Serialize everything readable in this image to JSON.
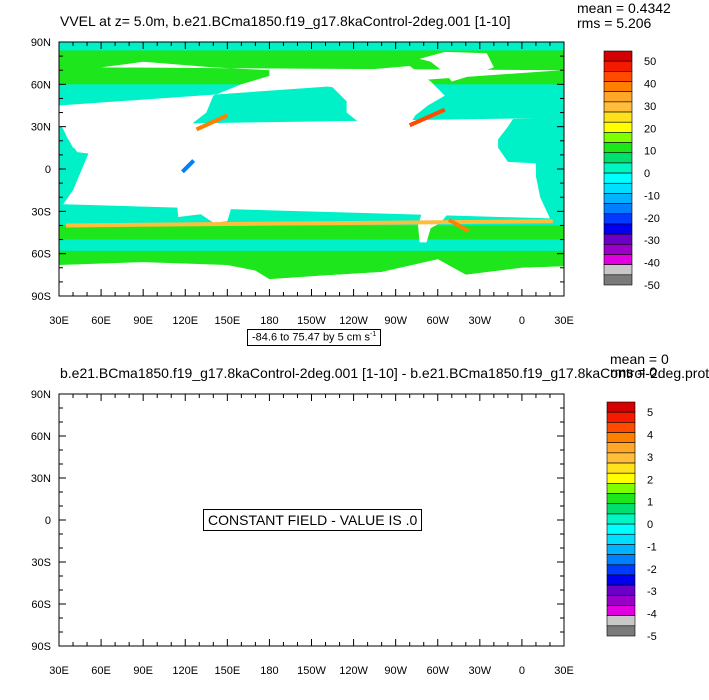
{
  "chart_data": [
    {
      "type": "heatmap",
      "title": "VVEL at z=   5.0m, b.e21.BCma1850.f19_g17.8kaControl-2deg.001 [1-10]",
      "stats": {
        "mean": "mean = 0.4342",
        "rms": "rms = 5.206"
      },
      "y_ticks": [
        "90N",
        "60N",
        "30N",
        "0",
        "30S",
        "60S",
        "90S"
      ],
      "x_ticks": [
        "30E",
        "60E",
        "90E",
        "120E",
        "150E",
        "180",
        "150W",
        "120W",
        "90W",
        "60W",
        "30W",
        "0",
        "30E"
      ],
      "colorbar_labels": [
        "50",
        "40",
        "30",
        "20",
        "10",
        "0",
        "-10",
        "-20",
        "-30",
        "-40",
        "-50"
      ],
      "range_label": "-84.6 to 75.47 by 5 cm s",
      "range_unit_sup": "-1",
      "field": "ocean meridional velocity (VVEL); land masked white"
    },
    {
      "type": "heatmap",
      "title": "b.e21.BCma1850.f19_g17.8kaControl-2deg.001 [1-10] - b.e21.BCma1850.f19_g17.8kaControl-2deg.prot",
      "stats": {
        "mean": "mean = 0",
        "rms": "rms = 0"
      },
      "y_ticks": [
        "90N",
        "60N",
        "30N",
        "0",
        "30S",
        "60S",
        "90S"
      ],
      "x_ticks": [
        "30E",
        "60E",
        "90E",
        "120E",
        "150E",
        "180",
        "150W",
        "120W",
        "90W",
        "60W",
        "30W",
        "0",
        "30E"
      ],
      "colorbar_labels": [
        "5",
        "4",
        "3",
        "2",
        "1",
        "0",
        "-1",
        "-2",
        "-3",
        "-4",
        "-5"
      ],
      "constant_label": "CONSTANT FIELD - VALUE IS .0"
    }
  ],
  "colormap": [
    "#d20000",
    "#f31a00",
    "#ff4a00",
    "#ff7f00",
    "#ffa726",
    "#ffbd3a",
    "#ffe21c",
    "#ffff00",
    "#7fff00",
    "#1de61d",
    "#00e06f",
    "#00f5c2",
    "#00ffff",
    "#00dfff",
    "#00b2ff",
    "#0080ff",
    "#0039ff",
    "#0000ef",
    "#6a00c8",
    "#9b00c8",
    "#e000e0",
    "#c8c8c8",
    "#7a7a7a"
  ],
  "colors": {
    "ocean_main": "#00f0c8",
    "ocean_pos": "#1de61d",
    "land": "#ffffff"
  }
}
